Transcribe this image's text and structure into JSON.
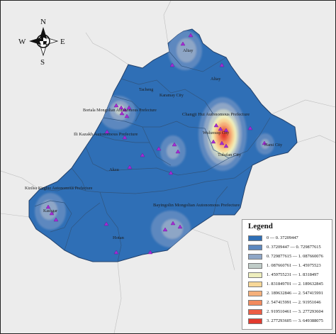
{
  "compass": {
    "north": "N",
    "south": "S",
    "east": "E",
    "west": "W"
  },
  "colors": {
    "base_region": "#2f6fb6",
    "border": "#3a5578",
    "outside": "#ececec",
    "sample_marker": "#a52ad6"
  },
  "labels": {
    "altay_city": "Altay",
    "altay_prefecture": "Altay",
    "tacheng": "Tacheng",
    "karamay": "Karamay City",
    "bortala": "Bortala Mongolian Autonomous Prefecture",
    "changji": "Changji Hui Autonomous Prefecture",
    "urumqi": "Wulumuqi City",
    "ili": "Ili Kazakh Autonomous Prefecture",
    "turpan": "Tulufan City",
    "hami": "Hami City",
    "aksu": "Aksu",
    "kizilsu": "Kizilsu Kirghiz Autonomous Prefecture",
    "kashgar": "Kashgar",
    "bayingolin": "Bayingolin Mongolian Autonomous Prefecture",
    "hotan": "Hotan"
  },
  "legend": {
    "title": "Legend",
    "items": [
      {
        "label": "0 — 0. 37209447",
        "color": "#2f6fb6"
      },
      {
        "label": "0. 37209447 — 0. 729877615",
        "color": "#5d88bf"
      },
      {
        "label": "0. 729877615 — 1. 087660076",
        "color": "#8ea6c6"
      },
      {
        "label": "1. 087660761 — 1. 45975523",
        "color": "#c0ccc8"
      },
      {
        "label": "1. 459755231 — 1. 8318497",
        "color": "#eeeebd"
      },
      {
        "label": "1. 831849701 — 2. 189632845",
        "color": "#f7d797"
      },
      {
        "label": "2. 189632846 — 2. 547415991",
        "color": "#f5b07b"
      },
      {
        "label": "2. 547415991 — 2. 91951046",
        "color": "#f28a5d"
      },
      {
        "label": "2. 919510461 — 3. 277293604",
        "color": "#ec5c44"
      },
      {
        "label": "3. 277293605 — 3. 649388075",
        "color": "#e23a2e"
      }
    ]
  }
}
